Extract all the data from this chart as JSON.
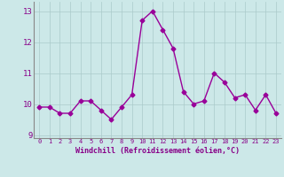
{
  "x": [
    0,
    1,
    2,
    3,
    4,
    5,
    6,
    7,
    8,
    9,
    10,
    11,
    12,
    13,
    14,
    15,
    16,
    17,
    18,
    19,
    20,
    21,
    22,
    23
  ],
  "y": [
    9.9,
    9.9,
    9.7,
    9.7,
    10.1,
    10.1,
    9.8,
    9.5,
    9.9,
    10.3,
    12.7,
    13.0,
    12.4,
    11.8,
    10.4,
    10.0,
    10.1,
    11.0,
    10.7,
    10.2,
    10.3,
    9.8,
    10.3,
    9.7
  ],
  "line_color": "#990099",
  "marker": "D",
  "marker_size": 2.5,
  "bg_color": "#cce8e8",
  "grid_color": "#aacaca",
  "xlabel": "Windchill (Refroidissement éolien,°C)",
  "xlabel_color": "#880088",
  "tick_color": "#880088",
  "ylim": [
    8.9,
    13.3
  ],
  "yticks": [
    9,
    10,
    11,
    12,
    13
  ],
  "xlim": [
    -0.5,
    23.5
  ],
  "spine_color": "#888888"
}
